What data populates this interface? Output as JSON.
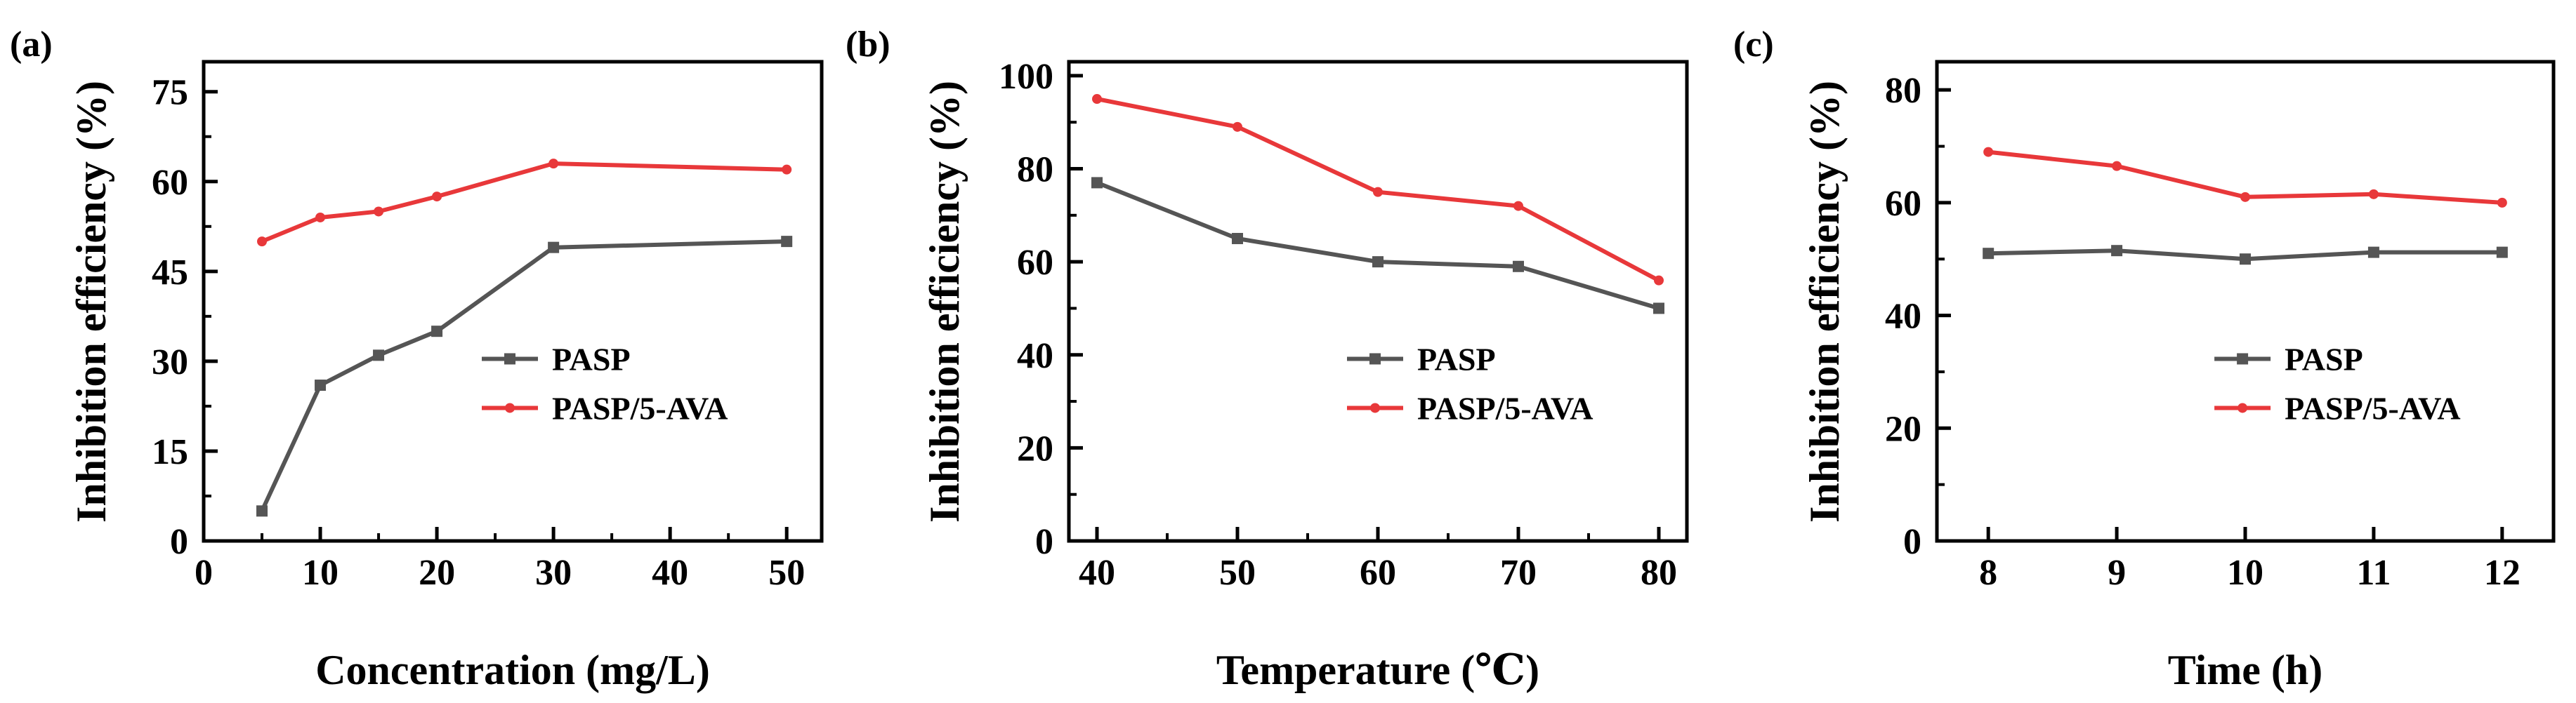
{
  "colors": {
    "pasp": "#555555",
    "pasp_5ava": "#e8383a",
    "axis": "#000000"
  },
  "chart_data": [
    {
      "type": "line",
      "panel_label": "(a)",
      "xlabel": "Concentration (mg/L)",
      "ylabel": "Inhibition efficiency (%)",
      "xlim": [
        0,
        53
      ],
      "ylim": [
        0,
        80
      ],
      "xticks": [
        0,
        10,
        20,
        30,
        40,
        50
      ],
      "yticks": [
        0,
        15,
        30,
        45,
        60,
        75
      ],
      "xtick_labels": [
        "0",
        "10",
        "20",
        "30",
        "40",
        "50"
      ],
      "ytick_labels": [
        "0",
        "15",
        "30",
        "45",
        "60",
        "75"
      ],
      "minor_x": true,
      "legend": [
        "PASP",
        "PASP/5-AVA"
      ],
      "series": [
        {
          "name": "PASP",
          "x": [
            5,
            10,
            15,
            20,
            30,
            50
          ],
          "values": [
            5,
            26,
            31,
            35,
            49,
            50
          ]
        },
        {
          "name": "PASP/5-AVA",
          "x": [
            5,
            10,
            15,
            20,
            30,
            50
          ],
          "values": [
            50,
            54,
            55,
            57.5,
            63,
            62
          ]
        }
      ]
    },
    {
      "type": "line",
      "panel_label": "(b)",
      "xlabel": "Temperature (℃)",
      "ylabel": "Inhibition efficiency (%)",
      "xlim": [
        38,
        82
      ],
      "ylim": [
        0,
        103
      ],
      "xticks": [
        40,
        50,
        60,
        70,
        80
      ],
      "yticks": [
        0,
        20,
        40,
        60,
        80,
        100
      ],
      "xtick_labels": [
        "40",
        "50",
        "60",
        "70",
        "80"
      ],
      "ytick_labels": [
        "0",
        "20",
        "40",
        "60",
        "80",
        "100"
      ],
      "minor_x": true,
      "legend": [
        "PASP",
        "PASP/5-AVA"
      ],
      "series": [
        {
          "name": "PASP",
          "x": [
            40,
            50,
            60,
            70,
            80
          ],
          "values": [
            77,
            65,
            60,
            59,
            50
          ]
        },
        {
          "name": "PASP/5-AVA",
          "x": [
            40,
            50,
            60,
            70,
            80
          ],
          "values": [
            95,
            89,
            75,
            72,
            56
          ]
        }
      ]
    },
    {
      "type": "line",
      "panel_label": "(c)",
      "xlabel": "Time (h)",
      "ylabel": "Inhibition efficiency (%)",
      "xlim": [
        7.6,
        12.4
      ],
      "ylim": [
        0,
        85
      ],
      "xticks": [
        8,
        9,
        10,
        11,
        12
      ],
      "yticks": [
        0,
        20,
        40,
        60,
        80
      ],
      "xtick_labels": [
        "8",
        "9",
        "10",
        "11",
        "12"
      ],
      "ytick_labels": [
        "0",
        "20",
        "40",
        "60",
        "80"
      ],
      "minor_x": false,
      "legend": [
        "PASP",
        "PASP/5-AVA"
      ],
      "series": [
        {
          "name": "PASP",
          "x": [
            8,
            9,
            10,
            11,
            12
          ],
          "values": [
            51,
            51.5,
            50,
            51.2,
            51.2
          ]
        },
        {
          "name": "PASP/5-AVA",
          "x": [
            8,
            9,
            10,
            11,
            12
          ],
          "values": [
            69,
            66.5,
            61,
            61.5,
            60
          ]
        }
      ]
    }
  ]
}
